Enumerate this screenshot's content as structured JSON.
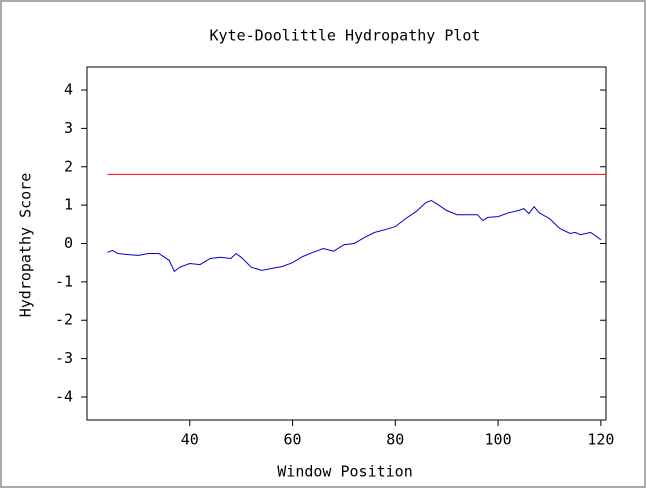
{
  "chart_data": {
    "type": "line",
    "title": "Kyte-Doolittle Hydropathy Plot",
    "xlabel": "Window Position",
    "ylabel": "Hydropathy Score",
    "xlim": [
      20,
      121
    ],
    "ylim": [
      -4.6,
      4.6
    ],
    "xticks": [
      40,
      60,
      80,
      100,
      120
    ],
    "yticks": [
      -4,
      -3,
      -2,
      -1,
      0,
      1,
      2,
      3,
      4
    ],
    "series": [
      {
        "color": "#0000cc",
        "x": [
          24,
          25,
          26,
          28,
          30,
          32,
          34,
          36,
          37,
          38,
          40,
          42,
          44,
          46,
          48,
          49,
          50,
          52,
          54,
          56,
          58,
          60,
          62,
          64,
          66,
          68,
          70,
          72,
          74,
          76,
          78,
          80,
          82,
          84,
          86,
          87,
          88,
          90,
          92,
          94,
          96,
          97,
          98,
          100,
          102,
          104,
          105,
          106,
          107,
          108,
          110,
          112,
          114,
          115,
          116,
          118,
          120
        ],
        "values": [
          -0.23,
          -0.18,
          -0.26,
          -0.29,
          -0.31,
          -0.26,
          -0.26,
          -0.44,
          -0.73,
          -0.62,
          -0.52,
          -0.55,
          -0.39,
          -0.36,
          -0.39,
          -0.26,
          -0.36,
          -0.62,
          -0.7,
          -0.65,
          -0.6,
          -0.5,
          -0.34,
          -0.23,
          -0.13,
          -0.2,
          -0.03,
          0,
          0.16,
          0.29,
          0.36,
          0.44,
          0.65,
          0.83,
          1.07,
          1.12,
          1.04,
          0.86,
          0.75,
          0.75,
          0.75,
          0.6,
          0.68,
          0.7,
          0.8,
          0.86,
          0.91,
          0.78,
          0.96,
          0.8,
          0.65,
          0.39,
          0.26,
          0.29,
          0.23,
          0.29,
          0.1
        ]
      },
      {
        "color": "#ff0000",
        "x": [
          24,
          121
        ],
        "values": [
          1.8,
          1.8
        ]
      }
    ]
  }
}
